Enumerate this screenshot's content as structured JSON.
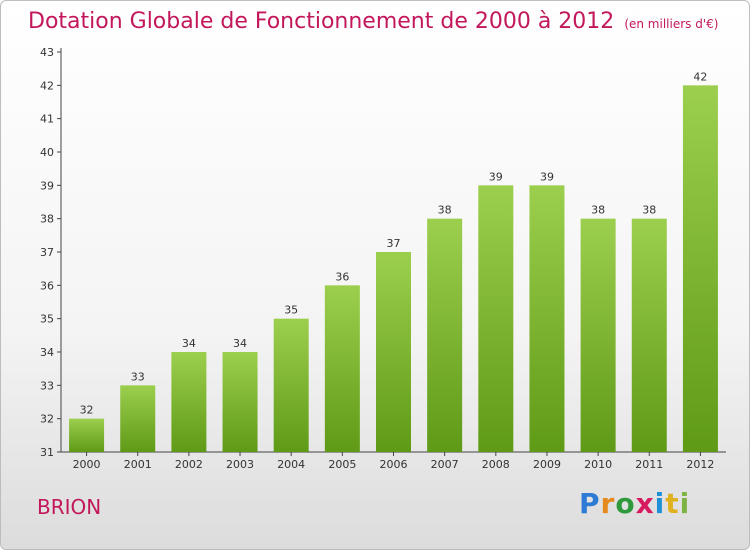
{
  "title": "Dotation Globale de Fonctionnement de 2000 à 2012",
  "subtitle": "(en milliers d'€)",
  "commune": "BRION",
  "logo": "Proxiti",
  "colors": {
    "title": "#c2185b",
    "bar_top": "#9ccf4e",
    "bar_bottom": "#5f9a16"
  },
  "chart_data": {
    "type": "bar",
    "title": "Dotation Globale de Fonctionnement de 2000 à 2012",
    "subtitle": "(en milliers d'€)",
    "categories": [
      "2000",
      "2001",
      "2002",
      "2003",
      "2004",
      "2005",
      "2006",
      "2007",
      "2008",
      "2009",
      "2010",
      "2011",
      "2012"
    ],
    "values": [
      32,
      33,
      34,
      34,
      35,
      36,
      37,
      38,
      39,
      39,
      38,
      38,
      42
    ],
    "ylim": [
      31,
      43
    ],
    "yticks": [
      31,
      32,
      33,
      34,
      35,
      36,
      37,
      38,
      39,
      40,
      41,
      42,
      43
    ],
    "grid": false
  }
}
